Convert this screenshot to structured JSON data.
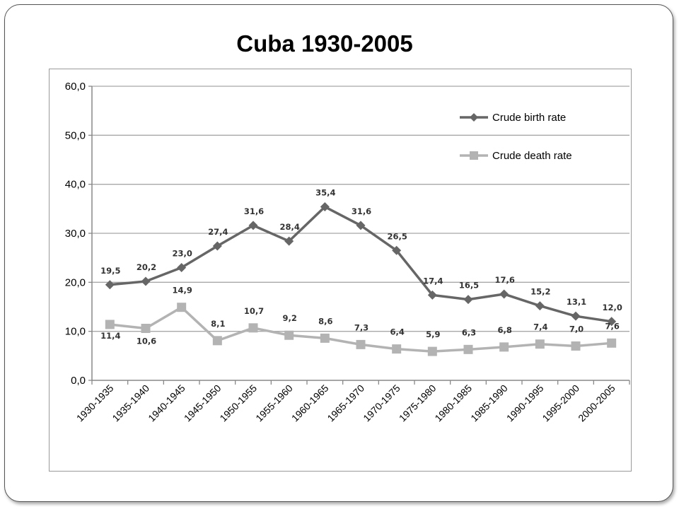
{
  "slide": {
    "title": "Cuba 1930-2005"
  },
  "chart_data": {
    "type": "line",
    "title": "",
    "xlabel": "",
    "ylabel": "",
    "ylim": [
      0,
      60
    ],
    "yticks": [
      "0,0",
      "10,0",
      "20,0",
      "30,0",
      "40,0",
      "50,0",
      "60,0"
    ],
    "grid": true,
    "legend_position": "top-right",
    "categories": [
      "1930-1935",
      "1935-1940",
      "1940-1945",
      "1945-1950",
      "1950-1955",
      "1955-1960",
      "1960-1965",
      "1965-1970",
      "1970-1975",
      "1975-1980",
      "1980-1985",
      "1985-1990",
      "1990-1995",
      "1995-2000",
      "2000-2005"
    ],
    "series": [
      {
        "name": "Crude birth rate",
        "color": "#666666",
        "marker": "diamond",
        "values": [
          19.5,
          20.2,
          23.0,
          27.4,
          31.6,
          28.4,
          35.4,
          31.6,
          26.5,
          17.4,
          16.5,
          17.6,
          15.2,
          13.1,
          12.0
        ],
        "labels": [
          "19,5",
          "20,2",
          "23,0",
          "27,4",
          "31,6",
          "28,4",
          "35,4",
          "31,6",
          "26,5",
          "17,4",
          "16,5",
          "17,6",
          "15,2",
          "13,1",
          "12,0"
        ]
      },
      {
        "name": "Crude death rate",
        "color": "#b3b3b3",
        "marker": "square",
        "values": [
          11.4,
          10.6,
          14.9,
          8.1,
          10.7,
          9.2,
          8.6,
          7.3,
          6.4,
          5.9,
          6.3,
          6.8,
          7.4,
          7.0,
          7.6
        ],
        "labels": [
          "11,4",
          "10,6",
          "14,9",
          "8,1",
          "10,7",
          "9,2",
          "8,6",
          "7,3",
          "6,4",
          "5,9",
          "6,3",
          "6,8",
          "7,4",
          "7,0",
          "7,6"
        ]
      }
    ]
  }
}
